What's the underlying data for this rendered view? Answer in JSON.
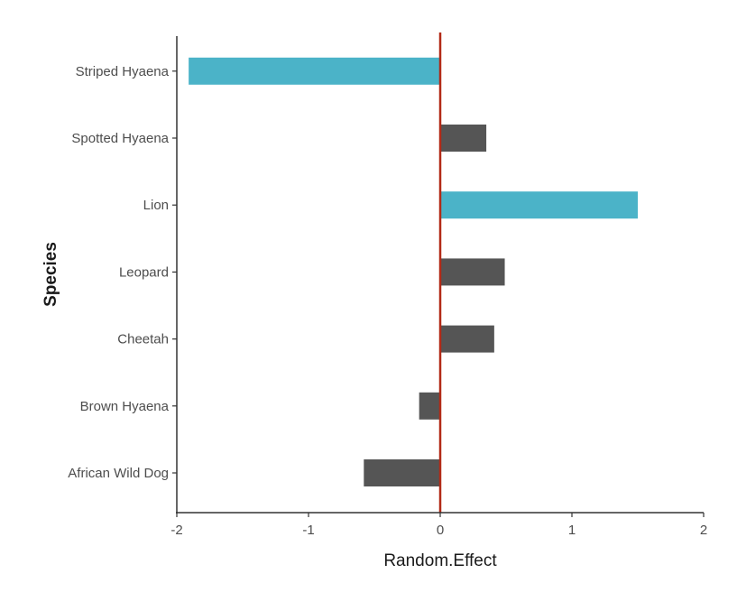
{
  "chart_data": {
    "type": "bar",
    "orientation": "horizontal",
    "categories": [
      "African Wild Dog",
      "Brown Hyaena",
      "Cheetah",
      "Leopard",
      "Lion",
      "Spotted Hyaena",
      "Striped Hyaena"
    ],
    "values": [
      -0.58,
      -0.16,
      0.41,
      0.49,
      1.5,
      0.35,
      -1.91
    ],
    "highlighted": [
      false,
      false,
      false,
      false,
      true,
      false,
      true
    ],
    "xlabel": "Random.Effect",
    "ylabel": "Species",
    "xlim": [
      -2,
      2
    ],
    "xticks": [
      "-2",
      "-1",
      "0",
      "1",
      "2"
    ],
    "xtick_values": [
      -2,
      -1,
      0,
      1,
      2
    ],
    "reference_line": 0,
    "grid": false,
    "legend": "none",
    "colors": {
      "bar_default": "#555555",
      "bar_highlight": "#4bb3c8",
      "reference_line": "#b22a17",
      "axis": "#333333"
    }
  }
}
